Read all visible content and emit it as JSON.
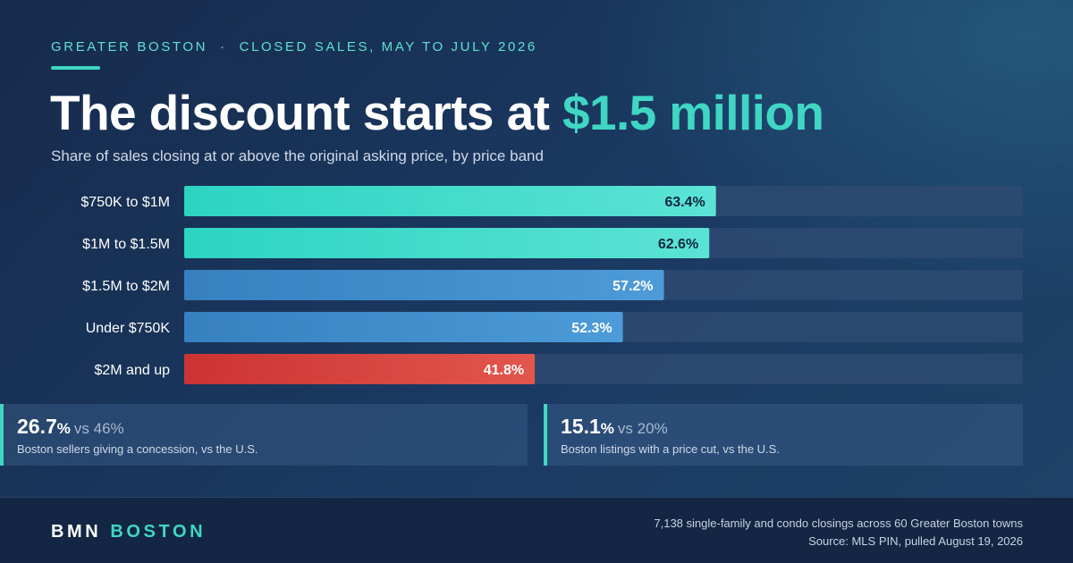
{
  "header": {
    "eyebrow_left": "GREATER BOSTON",
    "eyebrow_sep": "·",
    "eyebrow_right": "CLOSED SALES, MAY TO JULY 2026",
    "headline_main": "The discount starts at ",
    "headline_accent": "$1.5 million",
    "subtitle": "Share of sales closing at or above the original asking price, by price band"
  },
  "chart_data": {
    "type": "bar",
    "orientation": "horizontal",
    "categories": [
      "$750K to $1M",
      "$1M to $1.5M",
      "$1.5M to $2M",
      "Under $750K",
      "$2M and up"
    ],
    "values": [
      63.4,
      62.6,
      57.2,
      52.3,
      41.8
    ],
    "value_labels": [
      "63.4%",
      "62.6%",
      "57.2%",
      "52.3%",
      "41.8%"
    ],
    "xlim": [
      0,
      100
    ],
    "grid": false,
    "legend": "none",
    "bar_colors": [
      [
        "#2dd4c2",
        "#5be3d4"
      ],
      [
        "#2dd4c2",
        "#5be3d4"
      ],
      [
        "#3680c0",
        "#4d9bd8"
      ],
      [
        "#3680c0",
        "#4d9bd8"
      ],
      [
        "#cc3333",
        "#e2564c"
      ]
    ],
    "label_colors": [
      "#0f2740",
      "#0f2740",
      "#ffffff",
      "#ffffff",
      "#ffffff"
    ]
  },
  "stats": [
    {
      "number": "26.7",
      "unit": "%",
      "compare": "vs 46%",
      "description": "Boston sellers giving a concession, vs the U.S."
    },
    {
      "number": "15.1",
      "unit": "%",
      "compare": "vs 20%",
      "description": "Boston listings with a price cut, vs the U.S."
    }
  ],
  "footer": {
    "brand_left": "BMN",
    "brand_right": "BOSTON",
    "note_line1": "7,138 single-family and condo closings across 60 Greater Boston towns",
    "note_line2": "Source: MLS PIN, pulled August 19, 2026"
  },
  "colors": {
    "accent": "#3fd6c4",
    "track": "#2e4a72",
    "background": "#1b3a63"
  }
}
